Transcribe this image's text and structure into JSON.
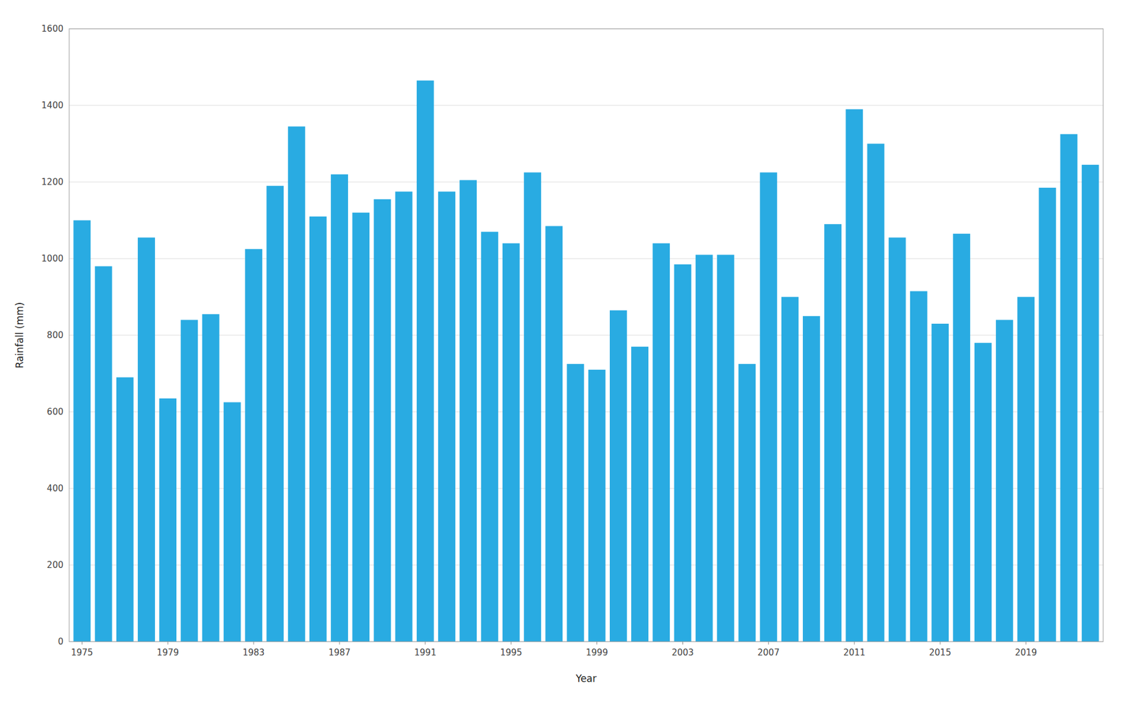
{
  "chart_data": {
    "type": "bar",
    "xlabel": "Year",
    "ylabel": "Rainfall (mm)",
    "x": [
      1975,
      1976,
      1977,
      1978,
      1979,
      1980,
      1981,
      1982,
      1983,
      1984,
      1985,
      1986,
      1987,
      1988,
      1989,
      1990,
      1991,
      1992,
      1993,
      1994,
      1995,
      1996,
      1997,
      1998,
      1999,
      2000,
      2001,
      2002,
      2003,
      2004,
      2005,
      2006,
      2007,
      2008,
      2009,
      2010,
      2011,
      2012,
      2013,
      2014,
      2015,
      2016,
      2017,
      2018,
      2019,
      2020,
      2021,
      2022
    ],
    "values": [
      1100,
      980,
      690,
      1055,
      635,
      840,
      855,
      625,
      1025,
      1190,
      1345,
      1110,
      1220,
      1120,
      1155,
      1175,
      1465,
      1175,
      1205,
      1070,
      1040,
      1225,
      1085,
      725,
      710,
      865,
      770,
      1040,
      985,
      1010,
      1010,
      725,
      1225,
      900,
      850,
      1090,
      1390,
      1300,
      1055,
      915,
      830,
      1065,
      780,
      840,
      900,
      1185,
      1325,
      1245
    ],
    "color": "#29ABE2",
    "xlim": [
      1974.4,
      2022.6
    ],
    "xticks": [
      1975,
      1979,
      1983,
      1987,
      1991,
      1995,
      1999,
      2003,
      2007,
      2011,
      2015,
      2019
    ],
    "ylim": [
      0,
      1600
    ],
    "yticks": [
      0,
      200,
      400,
      600,
      800,
      1000,
      1200,
      1400,
      1600
    ],
    "grid": true
  }
}
